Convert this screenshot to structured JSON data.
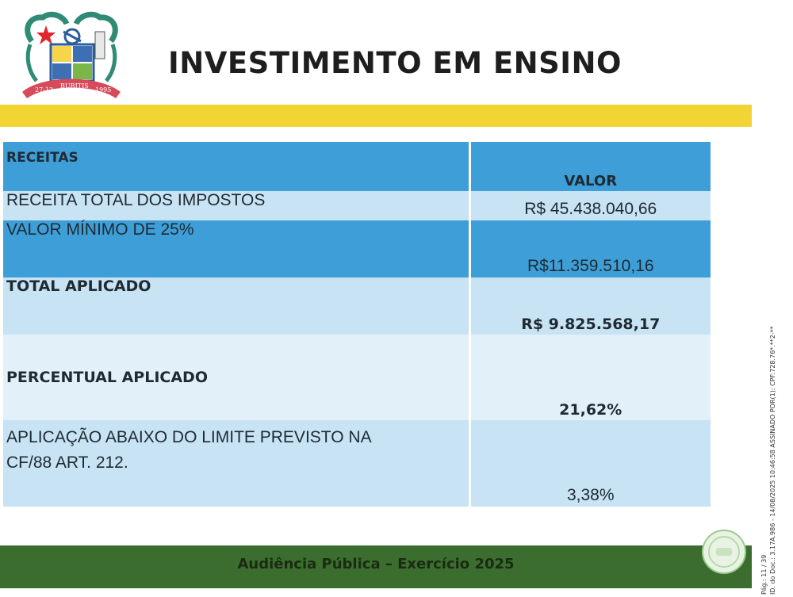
{
  "header": {
    "title": "INVESTIMENTO EM ENSINO",
    "crest": {
      "icon": "municipal-crest-icon",
      "text_left": "27-12",
      "text_center": "BURITIS",
      "text_right": "1995"
    }
  },
  "table": {
    "header": {
      "label": "RECEITAS",
      "value": "VALOR"
    },
    "rows": [
      {
        "label": "RECEITA TOTAL DOS IMPOSTOS",
        "value": "R$ 45.438.040,66"
      },
      {
        "label": "VALOR MÍNIMO DE 25%",
        "value": "R$11.359.510,16"
      },
      {
        "label": "TOTAL APLICADO",
        "value": "R$ 9.825.568,17"
      },
      {
        "label": "PERCENTUAL APLICADO",
        "value": "21,62%"
      },
      {
        "label_line1": "APLICAÇÃO ABAIXO DO LIMITE PREVISTO NA",
        "label_line2": "CF/88 ART. 212.",
        "value": "3,38%"
      }
    ]
  },
  "footer": {
    "text": "Audiência Pública – Exercício 2025"
  },
  "side_stamp": {
    "line1": "Pág.: 11 / 39",
    "line2": "ID. do Doc.: 3.17A.986 - 14/08/2025 10:46:58 ASSINADO POR(1): CPF:728.76*.**2-**"
  },
  "colors": {
    "yellow_bar": "#f3d435",
    "table_dark": "#3e9fd8",
    "table_light": "#c7e3f4",
    "footer_green": "#3b6e2e"
  }
}
